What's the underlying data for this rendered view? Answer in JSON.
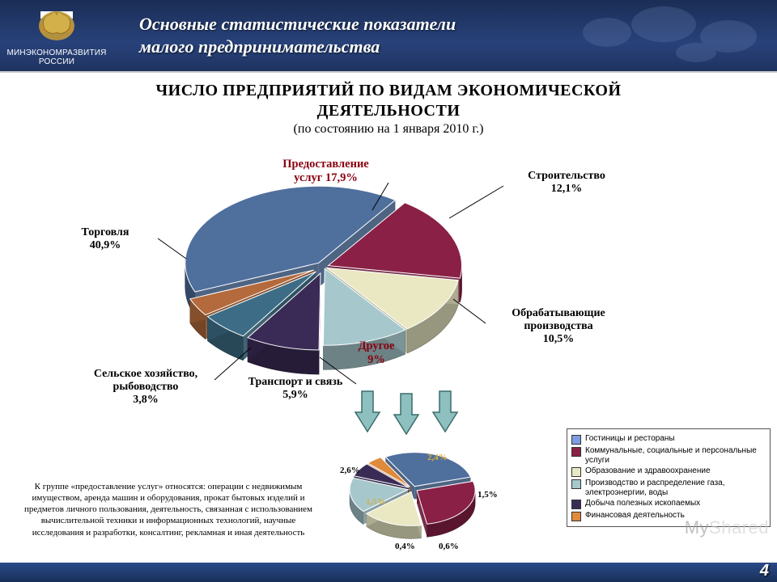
{
  "header": {
    "ministry_line1": "МИНЭКОНОМРАЗВИТИЯ",
    "ministry_line2": "РОССИИ",
    "title_line1": "Основные статистические показатели",
    "title_line2": "малого предпринимательства"
  },
  "chart_title": {
    "line1": "ЧИСЛО ПРЕДПРИЯТИЙ ПО ВИДАМ ЭКОНОМИЧЕСКОЙ",
    "line2": "ДЕЯТЕЛЬНОСТИ",
    "subtitle": "(по состоянию на 1 января 2010 г.)"
  },
  "main_pie": {
    "type": "pie-3d-exploded",
    "radius": 155,
    "depth": 28,
    "center_offset_y": 0,
    "slices": [
      {
        "label": "Торговля",
        "pct": 40.9,
        "color": "#4f6f9d",
        "explode": 10,
        "label_pos": "left",
        "highlight": false
      },
      {
        "label": "Предоставление услуг",
        "pct": 17.9,
        "color": "#8a2046",
        "explode": 6,
        "label_pos": "top",
        "highlight": true
      },
      {
        "label": "Строительство",
        "pct": 12.1,
        "color": "#e9e8c3",
        "explode": 4,
        "label_pos": "right",
        "highlight": false
      },
      {
        "label": "Обрабатывающие производства",
        "pct": 10.5,
        "color": "#a6c8cd",
        "explode": 4,
        "label_pos": "right",
        "highlight": false
      },
      {
        "label": "Другое",
        "pct": 9.0,
        "color": "#3a2b56",
        "explode": 14,
        "label_pos": "bottom",
        "highlight": true
      },
      {
        "label": "Транспорт и связь",
        "pct": 5.9,
        "color": "#3d6d86",
        "explode": 14,
        "label_pos": "bottom",
        "highlight": false
      },
      {
        "label": "Сельское хозяйство, рыбоводство",
        "pct": 3.8,
        "color": "#b46a3c",
        "explode": 14,
        "label_pos": "bottom",
        "highlight": false
      }
    ]
  },
  "small_pie": {
    "type": "pie-3d-exploded",
    "radius": 65,
    "depth": 14,
    "slices": [
      {
        "label": "2,6%",
        "pct": 2.6,
        "color": "#4f6f9d"
      },
      {
        "label": "2,4%",
        "pct": 2.4,
        "color": "#8a2046"
      },
      {
        "label": "1,5%",
        "pct": 1.5,
        "color": "#e9e8c3"
      },
      {
        "label": "1,5%",
        "pct": 1.5,
        "color": "#a6c8cd"
      },
      {
        "label": "0,6%",
        "pct": 0.6,
        "color": "#3a2b56"
      },
      {
        "label": "0,4%",
        "pct": 0.4,
        "color": "#e08a3c"
      }
    ]
  },
  "legend": [
    {
      "color": "#7d9de0",
      "text": "Гостиницы и рестораны"
    },
    {
      "color": "#8a2046",
      "text": "Коммунальные, социальные и персональные услуги"
    },
    {
      "color": "#e9e8c3",
      "text": "Образование и здравоохранение"
    },
    {
      "color": "#a6c8cd",
      "text": "Производство и распределение газа, электроэнергии, воды"
    },
    {
      "color": "#3a2b56",
      "text": "Добыча полезных ископаемых"
    },
    {
      "color": "#e08a3c",
      "text": "Финансовая деятельность"
    }
  ],
  "labels": {
    "trade": "Торговля\n40,9%",
    "services": "Предоставление\nуслуг 17,9%",
    "construction": "Строительство\n12,1%",
    "manufacturing": "Обрабатывающие\nпроизводства\n10,5%",
    "other": "Другое\n9%",
    "transport": "Транспорт и связь\n5,9%",
    "agriculture": "Сельское хозяйство,\nрыбоводство\n3,8%",
    "s_26": "2,6%",
    "s_24": "2,4%",
    "s_15a": "1,5%",
    "s_15b": "1,5%",
    "s_06": "0,6%",
    "s_04": "0,4%"
  },
  "footnote": "К группе «предоставление услуг» относятся: операции с недвижимым имуществом, аренда машин и оборудования, прокат бытовых изделий и предметов личного пользования, деятельность, связанная с использованием вычислительной техники и информационных технологий, научные исследования и разработки, консалтинг, рекламная и иная деятельность",
  "footer": {
    "page": "4",
    "watermark": "MyShared"
  },
  "colors": {
    "header_bg": "#22386a",
    "arrow": "#8dc0be",
    "arrow_border": "#3a6d6b"
  }
}
